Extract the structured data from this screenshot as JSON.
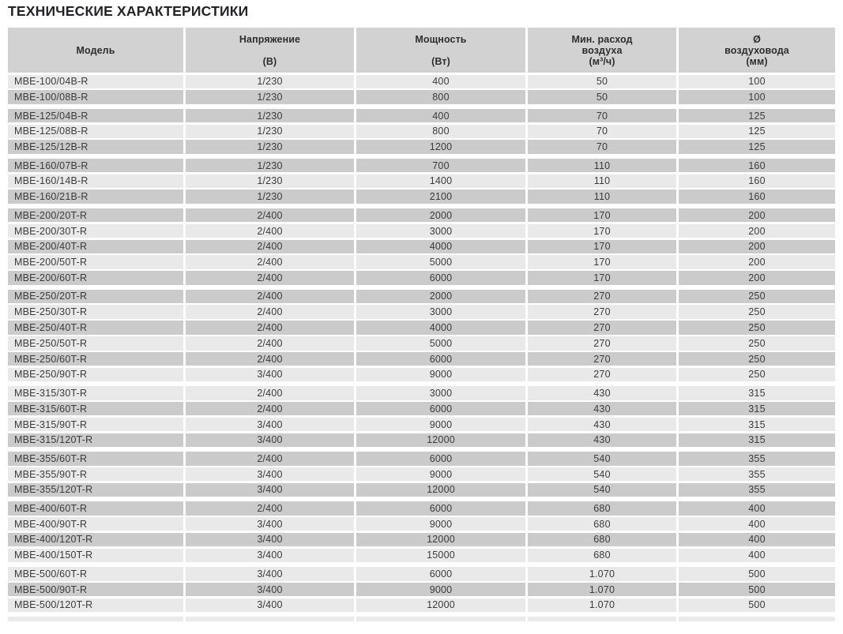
{
  "page_title": "ТЕХНИЧЕСКИЕ ХАРАКТЕРИСТИКИ",
  "colors": {
    "header_bg": "#d2d2d2",
    "row_light": "#e9e9e9",
    "row_dark": "#cbcbcb",
    "body_text": "#3b3b3b",
    "header_text": "#2e2e31",
    "title_text": "#232327",
    "page_bg": "#ffffff"
  },
  "table": {
    "columns": [
      {
        "id": "model",
        "label": "Модель",
        "label_lines": [
          "Модель"
        ]
      },
      {
        "id": "voltage",
        "label": "Напряжение (В)",
        "label_lines": [
          "Напряжение",
          "",
          "(В)"
        ]
      },
      {
        "id": "power",
        "label": "Мощность (Вт)",
        "label_lines": [
          "Мощность",
          "",
          "(Вт)"
        ]
      },
      {
        "id": "airflow",
        "label": "Мин. расход воздуха (м³/ч)",
        "label_lines": [
          "Мин. расход",
          "воздуха",
          "(м³/ч)"
        ]
      },
      {
        "id": "diameter",
        "label": "Ø воздуховода (мм)",
        "label_lines": [
          "Ø",
          "воздуховода",
          "(мм)"
        ]
      }
    ],
    "groups": [
      {
        "series": "MBE-100",
        "rows": [
          [
            "MBE-100/04B-R",
            "1/230",
            "400",
            "50",
            "100"
          ],
          [
            "MBE-100/08B-R",
            "1/230",
            "800",
            "50",
            "100"
          ]
        ]
      },
      {
        "series": "MBE-125",
        "rows": [
          [
            "MBE-125/04B-R",
            "1/230",
            "400",
            "70",
            "125"
          ],
          [
            "MBE-125/08B-R",
            "1/230",
            "800",
            "70",
            "125"
          ],
          [
            "MBE-125/12B-R",
            "1/230",
            "1200",
            "70",
            "125"
          ]
        ]
      },
      {
        "series": "MBE-160",
        "rows": [
          [
            "MBE-160/07B-R",
            "1/230",
            "700",
            "110",
            "160"
          ],
          [
            "MBE-160/14B-R",
            "1/230",
            "1400",
            "110",
            "160"
          ],
          [
            "MBE-160/21B-R",
            "1/230",
            "2100",
            "110",
            "160"
          ]
        ]
      },
      {
        "series": "MBE-200",
        "rows": [
          [
            "MBE-200/20T-R",
            "2/400",
            "2000",
            "170",
            "200"
          ],
          [
            "MBE-200/30T-R",
            "2/400",
            "3000",
            "170",
            "200"
          ],
          [
            "MBE-200/40T-R",
            "2/400",
            "4000",
            "170",
            "200"
          ],
          [
            "MBE-200/50T-R",
            "2/400",
            "5000",
            "170",
            "200"
          ],
          [
            "MBE-200/60T-R",
            "2/400",
            "6000",
            "170",
            "200"
          ]
        ]
      },
      {
        "series": "MBE-250",
        "rows": [
          [
            "MBE-250/20T-R",
            "2/400",
            "2000",
            "270",
            "250"
          ],
          [
            "MBE-250/30T-R",
            "2/400",
            "3000",
            "270",
            "250"
          ],
          [
            "MBE-250/40T-R",
            "2/400",
            "4000",
            "270",
            "250"
          ],
          [
            "MBE-250/50T-R",
            "2/400",
            "5000",
            "270",
            "250"
          ],
          [
            "MBE-250/60T-R",
            "2/400",
            "6000",
            "270",
            "250"
          ],
          [
            "MBE-250/90T-R",
            "3/400",
            "9000",
            "270",
            "250"
          ]
        ]
      },
      {
        "series": "MBE-315",
        "rows": [
          [
            "MBE-315/30T-R",
            "2/400",
            "3000",
            "430",
            "315"
          ],
          [
            "MBE-315/60T-R",
            "2/400",
            "6000",
            "430",
            "315"
          ],
          [
            "MBE-315/90T-R",
            "3/400",
            "9000",
            "430",
            "315"
          ],
          [
            "MBE-315/120T-R",
            "3/400",
            "12000",
            "430",
            "315"
          ]
        ]
      },
      {
        "series": "MBE-355",
        "rows": [
          [
            "MBE-355/60T-R",
            "2/400",
            "6000",
            "540",
            "355"
          ],
          [
            "MBE-355/90T-R",
            "3/400",
            "9000",
            "540",
            "355"
          ],
          [
            "MBE-355/120T-R",
            "3/400",
            "12000",
            "540",
            "355"
          ]
        ]
      },
      {
        "series": "MBE-400",
        "rows": [
          [
            "MBE-400/60T-R",
            "2/400",
            "6000",
            "680",
            "400"
          ],
          [
            "MBE-400/90T-R",
            "3/400",
            "9000",
            "680",
            "400"
          ],
          [
            "MBE-400/120T-R",
            "3/400",
            "12000",
            "680",
            "400"
          ],
          [
            "MBE-400/150T-R",
            "3/400",
            "15000",
            "680",
            "400"
          ]
        ]
      },
      {
        "series": "MBE-500",
        "rows": [
          [
            "MBE-500/60T-R",
            "3/400",
            "6000",
            "1.070",
            "500"
          ],
          [
            "MBE-500/90T-R",
            "3/400",
            "9000",
            "1.070",
            "500"
          ],
          [
            "MBE-500/120T-R",
            "3/400",
            "12000",
            "1.070",
            "500"
          ]
        ]
      }
    ]
  }
}
